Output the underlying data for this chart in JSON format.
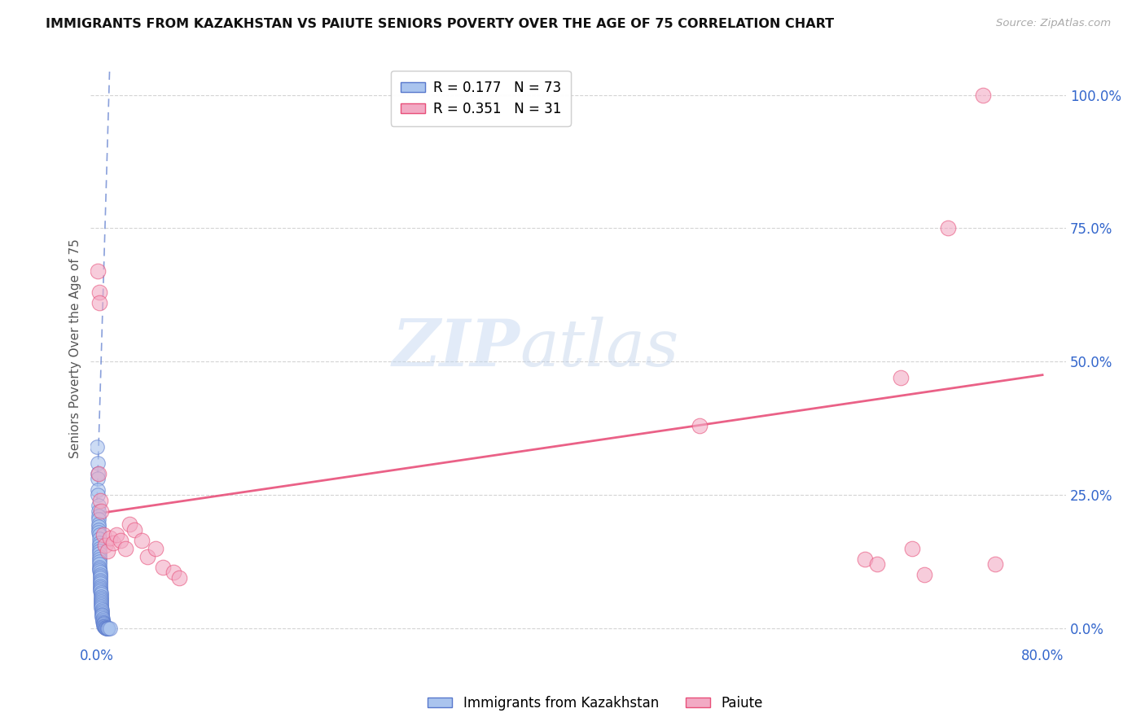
{
  "title": "IMMIGRANTS FROM KAZAKHSTAN VS PAIUTE SENIORS POVERTY OVER THE AGE OF 75 CORRELATION CHART",
  "source": "Source: ZipAtlas.com",
  "ylabel": "Seniors Poverty Over the Age of 75",
  "xlim": [
    -0.005,
    0.82
  ],
  "ylim": [
    -0.03,
    1.08
  ],
  "xticks": [
    0.0,
    0.1,
    0.2,
    0.3,
    0.4,
    0.5,
    0.6,
    0.7,
    0.8
  ],
  "xticklabels": [
    "0.0%",
    "",
    "",
    "",
    "",
    "",
    "",
    "",
    "80.0%"
  ],
  "yticks": [
    0.0,
    0.25,
    0.5,
    0.75,
    1.0
  ],
  "yticklabels": [
    "0.0%",
    "25.0%",
    "50.0%",
    "75.0%",
    "100.0%"
  ],
  "legend_r1": "R = 0.177",
  "legend_n1": "N = 73",
  "legend_r2": "R = 0.351",
  "legend_n2": "N = 31",
  "color_blue": "#aac4ee",
  "color_pink": "#f2aac4",
  "color_trend_blue": "#5878cc",
  "color_trend_pink": "#e8507a",
  "watermark_zip": "ZIP",
  "watermark_atlas": "atlas",
  "blue_scatter_x": [
    0.0005,
    0.0008,
    0.001,
    0.001,
    0.0012,
    0.0012,
    0.0014,
    0.0015,
    0.0015,
    0.0016,
    0.0017,
    0.0018,
    0.0018,
    0.0019,
    0.002,
    0.002,
    0.002,
    0.0021,
    0.0022,
    0.0022,
    0.0023,
    0.0023,
    0.0024,
    0.0024,
    0.0025,
    0.0025,
    0.0026,
    0.0026,
    0.0027,
    0.0027,
    0.0028,
    0.0028,
    0.0029,
    0.003,
    0.003,
    0.003,
    0.0031,
    0.0032,
    0.0033,
    0.0034,
    0.0035,
    0.0035,
    0.0036,
    0.0037,
    0.0038,
    0.0038,
    0.0039,
    0.004,
    0.004,
    0.0041,
    0.0042,
    0.0043,
    0.0044,
    0.0045,
    0.0046,
    0.0048,
    0.005,
    0.0052,
    0.0054,
    0.0056,
    0.0058,
    0.006,
    0.0062,
    0.0065,
    0.0068,
    0.007,
    0.0075,
    0.008,
    0.0085,
    0.009,
    0.0095,
    0.01,
    0.011
  ],
  "blue_scatter_y": [
    0.34,
    0.31,
    0.29,
    0.28,
    0.26,
    0.25,
    0.23,
    0.22,
    0.21,
    0.205,
    0.195,
    0.19,
    0.185,
    0.18,
    0.175,
    0.168,
    0.16,
    0.155,
    0.15,
    0.145,
    0.14,
    0.135,
    0.13,
    0.125,
    0.12,
    0.115,
    0.112,
    0.108,
    0.105,
    0.1,
    0.097,
    0.094,
    0.09,
    0.087,
    0.084,
    0.08,
    0.077,
    0.074,
    0.07,
    0.067,
    0.064,
    0.06,
    0.057,
    0.054,
    0.05,
    0.047,
    0.044,
    0.041,
    0.038,
    0.035,
    0.032,
    0.029,
    0.026,
    0.024,
    0.021,
    0.018,
    0.016,
    0.013,
    0.011,
    0.009,
    0.007,
    0.005,
    0.004,
    0.003,
    0.002,
    0.001,
    0.001,
    0.0,
    0.0,
    0.0,
    0.0,
    0.0,
    0.0
  ],
  "pink_scatter_x": [
    0.001,
    0.0015,
    0.002,
    0.0025,
    0.003,
    0.004,
    0.0055,
    0.007,
    0.009,
    0.011,
    0.014,
    0.017,
    0.02,
    0.024,
    0.028,
    0.032,
    0.038,
    0.043,
    0.05,
    0.056,
    0.065,
    0.07,
    0.51,
    0.65,
    0.66,
    0.68,
    0.69,
    0.7,
    0.72,
    0.75,
    0.76
  ],
  "pink_scatter_y": [
    0.67,
    0.29,
    0.63,
    0.61,
    0.24,
    0.22,
    0.175,
    0.155,
    0.145,
    0.17,
    0.16,
    0.175,
    0.165,
    0.15,
    0.195,
    0.185,
    0.165,
    0.135,
    0.15,
    0.115,
    0.105,
    0.095,
    0.38,
    0.13,
    0.12,
    0.47,
    0.15,
    0.1,
    0.75,
    1.0,
    0.12
  ],
  "blue_trend_x0": 0.0,
  "blue_trend_y0": 0.215,
  "blue_trend_x1": 0.011,
  "blue_trend_y1": 1.05,
  "pink_trend_x0": 0.0,
  "pink_trend_y0": 0.215,
  "pink_trend_x1": 0.8,
  "pink_trend_y1": 0.475
}
